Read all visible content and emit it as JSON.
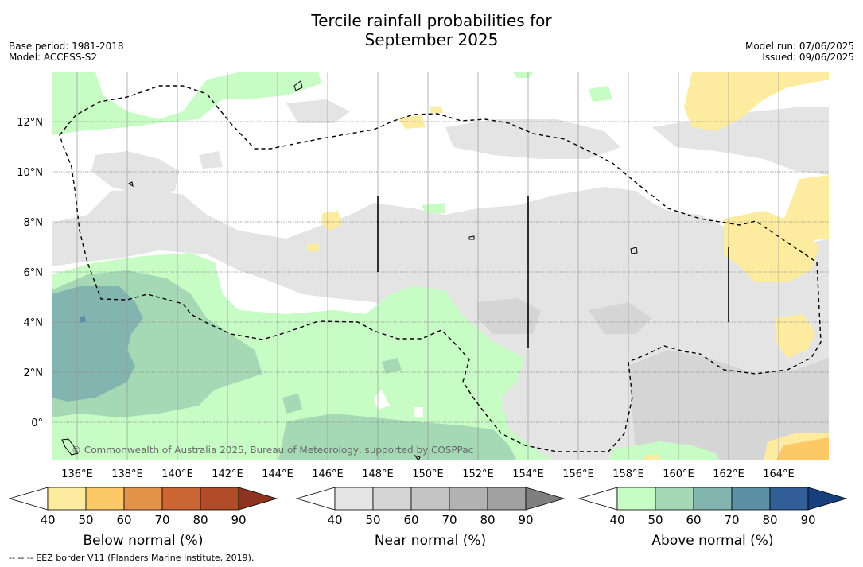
{
  "title_line1": "Tercile rainfall probabilities for",
  "title_line2": "September 2025",
  "base_period": "Base period: 1981-2018",
  "model": "Model: ACCESS-S2",
  "model_run": "Model run: 07/06/2025",
  "issued": "Issued: 09/06/2025",
  "copyright": "© Commonwealth of Australia 2025, Bureau of Meteorology, supported by COSPPac",
  "footnote": "--  --  -- EEZ border V11 (Flanders Marine Institute, 2019).",
  "lat_labels": [
    "12°N",
    "10°N",
    "8°N",
    "6°N",
    "4°N",
    "2°N",
    "0°"
  ],
  "lon_labels": [
    "136°E",
    "138°E",
    "140°E",
    "142°E",
    "144°E",
    "146°E",
    "148°E",
    "150°E",
    "152°E",
    "154°E",
    "156°E",
    "158°E",
    "160°E",
    "162°E",
    "164°E"
  ],
  "colorbars": [
    {
      "label": "Below normal (%)",
      "ticks": [
        "40",
        "50",
        "60",
        "70",
        "80",
        "90"
      ],
      "colors": [
        "#ffffff",
        "#fdeca0",
        "#fdc966",
        "#e29249",
        "#cc6534",
        "#b14b28",
        "#8d3320"
      ]
    },
    {
      "label": "Near normal (%)",
      "ticks": [
        "40",
        "50",
        "60",
        "70",
        "80",
        "90"
      ],
      "colors": [
        "#ffffff",
        "#e4e4e4",
        "#d5d5d5",
        "#c4c4c4",
        "#b2b2b2",
        "#a0a0a0",
        "#7f7f7f"
      ]
    },
    {
      "label": "Above normal (%)",
      "ticks": [
        "40",
        "50",
        "60",
        "70",
        "80",
        "90"
      ],
      "colors": [
        "#ffffff",
        "#c7fcc5",
        "#a5d9b6",
        "#82b4b0",
        "#5b8fa3",
        "#325f97",
        "#173f7b"
      ]
    }
  ]
}
